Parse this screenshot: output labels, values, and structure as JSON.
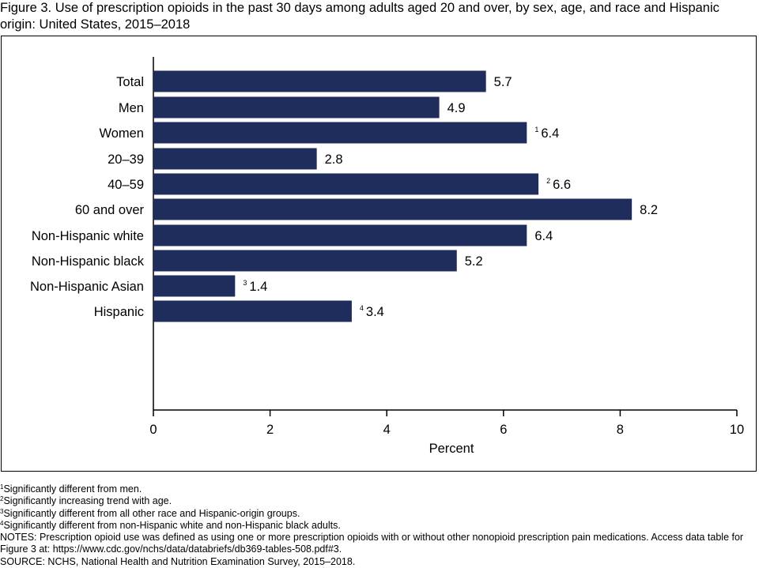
{
  "figure": {
    "title": "Figure 3. Use of prescription opioids in the past 30 days among adults aged 20 and over, by sex, age, and race and Hispanic origin: United States, 2015–2018"
  },
  "chart_data": {
    "type": "bar",
    "orientation": "horizontal",
    "xlabel": "Percent",
    "ylabel": "",
    "xlim": [
      0,
      10
    ],
    "xticks": [
      "0",
      "2",
      "4",
      "6",
      "8",
      "10"
    ],
    "grid": false,
    "bar_color": "#1f2d5c",
    "groups": [
      {
        "categories": [
          "Total"
        ],
        "values": [
          5.7
        ],
        "notes": [
          ""
        ]
      },
      {
        "categories": [
          "Men",
          "Women"
        ],
        "values": [
          4.9,
          6.4
        ],
        "notes": [
          "",
          "1"
        ]
      },
      {
        "categories": [
          "20–39",
          "40–59",
          "60 and over"
        ],
        "values": [
          2.8,
          6.6,
          8.2
        ],
        "notes": [
          "",
          "2",
          ""
        ]
      },
      {
        "categories": [
          "Non-Hispanic white",
          "Non-Hispanic black",
          "Non-Hispanic Asian",
          "Hispanic"
        ],
        "values": [
          6.4,
          5.2,
          1.4,
          3.4
        ],
        "notes": [
          "",
          "",
          "3",
          "4"
        ]
      }
    ]
  },
  "footnotes": {
    "items": [
      {
        "mark": "1",
        "text": "Significantly different from men."
      },
      {
        "mark": "2",
        "text": "Significantly increasing trend with age."
      },
      {
        "mark": "3",
        "text": "Significantly different from all other race and Hispanic-origin groups."
      },
      {
        "mark": "4",
        "text": "Significantly different from non-Hispanic white and non-Hispanic black adults."
      }
    ],
    "notes": "NOTES: Prescription opioid use was defined as using one or more prescription opioids with or without other nonopioid prescription pain medications. Access data table for Figure 3 at: https://www.cdc.gov/nchs/data/databriefs/db369-tables-508.pdf#3.",
    "source": "SOURCE: NCHS, National Health and Nutrition Examination Survey, 2015–2018."
  }
}
